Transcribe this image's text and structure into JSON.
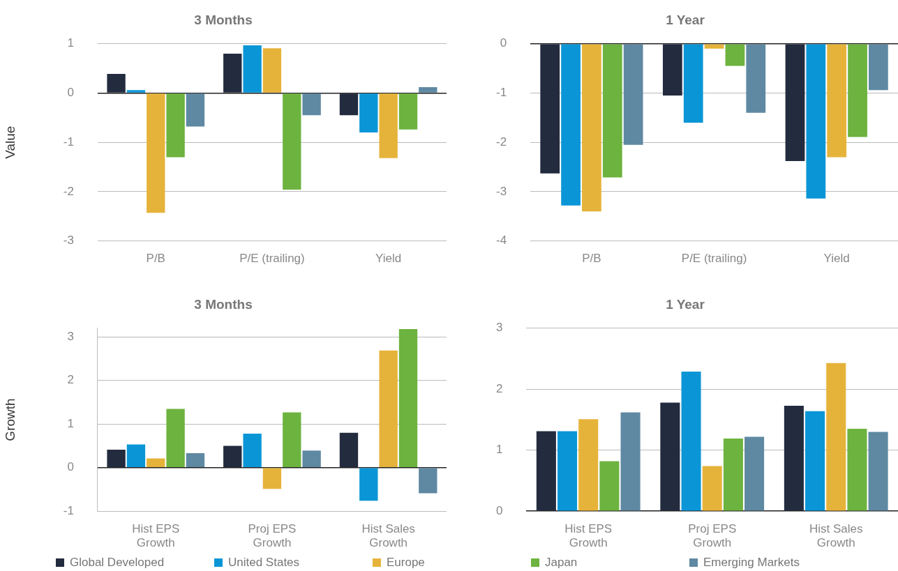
{
  "chart_data": [
    {
      "type": "bar",
      "title": "3 Months",
      "ylabel": "Value",
      "categories": [
        "P/B",
        "P/E (trailing)",
        "Yield"
      ],
      "ylim": [
        -3,
        1
      ],
      "yticks": [
        -3,
        -2,
        -1,
        0,
        1
      ],
      "grid": "y",
      "legend": "bottom",
      "series": [
        {
          "name": "Global Developed",
          "color": "#232b3e",
          "values": [
            0.39,
            0.8,
            -0.45
          ]
        },
        {
          "name": "United States",
          "color": "#0a96d6",
          "values": [
            0.06,
            0.97,
            -0.8
          ]
        },
        {
          "name": "Europe",
          "color": "#e6b33a",
          "values": [
            -2.43,
            0.91,
            -1.32
          ]
        },
        {
          "name": "Japan",
          "color": "#6db33f",
          "values": [
            -1.3,
            -1.96,
            -0.74
          ]
        },
        {
          "name": "Emerging Markets",
          "color": "#5f89a2",
          "values": [
            -0.68,
            -0.45,
            0.12
          ]
        }
      ]
    },
    {
      "type": "bar",
      "title": "1 Year",
      "categories": [
        "P/B",
        "P/E (trailing)",
        "Yield"
      ],
      "ylim": [
        -4,
        0
      ],
      "yticks": [
        -4,
        -3,
        -2,
        -1,
        0
      ],
      "grid": "y",
      "series": [
        {
          "color": "#232b3e",
          "values": [
            -2.63,
            -1.05,
            -2.38
          ]
        },
        {
          "color": "#0a96d6",
          "values": [
            -3.28,
            -1.6,
            -3.14
          ]
        },
        {
          "color": "#e6b33a",
          "values": [
            -3.4,
            -0.1,
            -2.3
          ]
        },
        {
          "color": "#6db33f",
          "values": [
            -2.71,
            -0.45,
            -1.89
          ]
        },
        {
          "color": "#5f89a2",
          "values": [
            -2.05,
            -1.4,
            -0.94
          ]
        }
      ]
    },
    {
      "type": "bar",
      "title": "3 Months",
      "ylabel": "Growth",
      "categories": [
        "Hist EPS\nGrowth",
        "Proj EPS\nGrowth",
        "Hist Sales\nGrowth"
      ],
      "ylim": [
        -1,
        3.2
      ],
      "yticks": [
        -1,
        0,
        1,
        2,
        3
      ],
      "grid": "y",
      "series": [
        {
          "color": "#232b3e",
          "values": [
            0.41,
            0.5,
            0.8
          ]
        },
        {
          "color": "#0a96d6",
          "values": [
            0.53,
            0.78,
            -0.76
          ]
        },
        {
          "color": "#e6b33a",
          "values": [
            0.21,
            -0.49,
            2.69
          ]
        },
        {
          "color": "#6db33f",
          "values": [
            1.35,
            1.27,
            3.18
          ]
        },
        {
          "color": "#5f89a2",
          "values": [
            0.33,
            0.39,
            -0.59
          ]
        }
      ]
    },
    {
      "type": "bar",
      "title": "1 Year",
      "categories": [
        "Hist EPS\nGrowth",
        "Proj EPS\nGrowth",
        "Hist Sales\nGrowth"
      ],
      "ylim": [
        0,
        3
      ],
      "yticks": [
        0,
        1,
        2,
        3
      ],
      "grid": "y",
      "series": [
        {
          "color": "#232b3e",
          "values": [
            1.31,
            1.78,
            1.73
          ]
        },
        {
          "color": "#0a96d6",
          "values": [
            1.31,
            2.29,
            1.64
          ]
        },
        {
          "color": "#e6b33a",
          "values": [
            1.51,
            0.74,
            2.43
          ]
        },
        {
          "color": "#6db33f",
          "values": [
            0.82,
            1.19,
            1.35
          ]
        },
        {
          "color": "#5f89a2",
          "values": [
            1.62,
            1.22,
            1.3
          ]
        }
      ]
    }
  ]
}
